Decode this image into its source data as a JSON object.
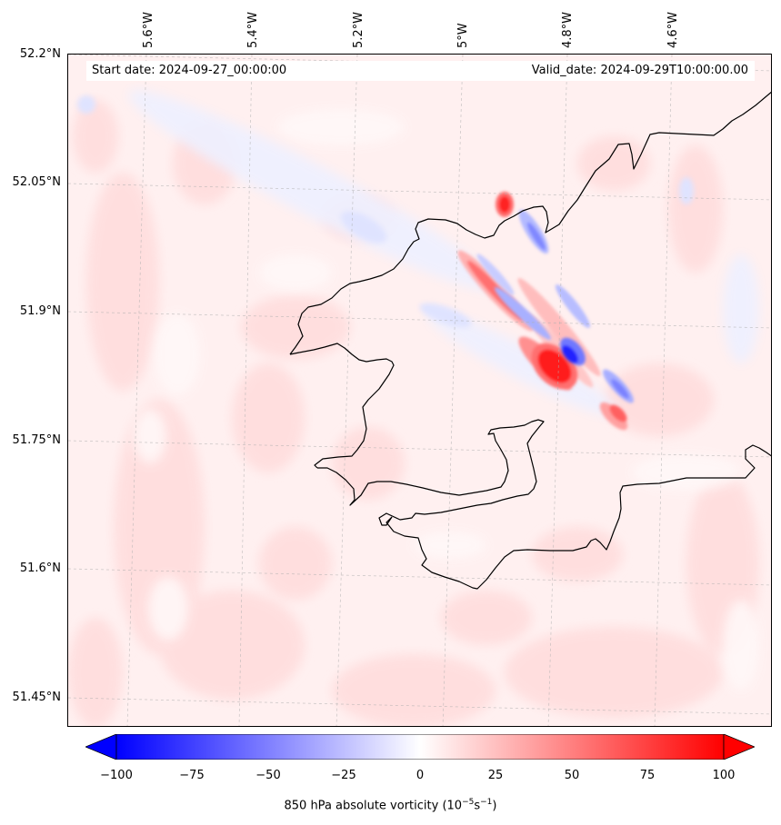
{
  "map": {
    "start_date": "Start date: 2024-09-27_00:00:00",
    "valid_date": "Valid_date: 2024-09-29T10:00:00.00",
    "lon_labels": [
      "5.6°W",
      "5.4°W",
      "5.2°W",
      "5°W",
      "4.8°W",
      "4.6°W"
    ],
    "lat_labels": [
      "52.2°N",
      "52.05°N",
      "51.9°N",
      "51.75°N",
      "51.6°N",
      "51.45°N"
    ],
    "field_colors": {
      "background": "#fff2f2",
      "light_red": "#ffdede",
      "mid_red": "#ff9a9a",
      "strong_red": "#ff2a2a",
      "light_blue": "#e6e9ff",
      "mid_blue": "#8c8cff",
      "strong_blue": "#1010ff"
    }
  },
  "colorbar": {
    "ticks": [
      "−100",
      "−75",
      "−50",
      "−25",
      "0",
      "25",
      "50",
      "75",
      "100"
    ],
    "label": "850 hPa absolute vorticity (10",
    "label_exp1": "−5",
    "label_mid": "s",
    "label_exp2": "−1",
    "label_end": ")",
    "min_color": "#0000ff",
    "zero_color": "#ffffff",
    "max_color": "#ff0000"
  }
}
